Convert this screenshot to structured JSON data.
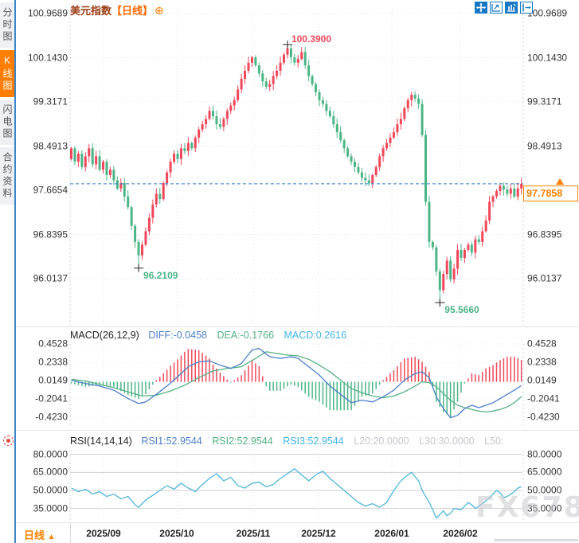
{
  "sidebar": {
    "tabs": [
      {
        "label": "分时图",
        "active": false
      },
      {
        "label": "K线图",
        "active": true
      },
      {
        "label": "闪电图",
        "active": false
      },
      {
        "label": "合约资料",
        "active": false
      }
    ]
  },
  "header": {
    "symbol": "美元指数",
    "interval_tag": "【日线】",
    "add_icon": "⊕"
  },
  "toolbar": {
    "icons": [
      "move-tool",
      "region-zoom-tool",
      "chart-style-tool",
      "exit-tool"
    ]
  },
  "price_box": {
    "value": "97.7858"
  },
  "bottom": {
    "interval_label": "日线",
    "arrow": "▲"
  },
  "watermark": "FX678",
  "indicators": {
    "macd": {
      "title": "MACD(26,12,9)",
      "diff_label": "DIFF:-0.0458",
      "dea_label": "DEA:-0.1766",
      "macd_label": "MACD:0.2616"
    },
    "rsi": {
      "title": "RSI(14,14,14)",
      "rsi1_label": "RSI1:52.9544",
      "rsi2_label": "RSI2:52.9544",
      "rsi3_label": "RSI3:52.9544",
      "l20_label": "L20:20.0000",
      "l30_label": "L30:30.0000",
      "l50_label": "L50:"
    }
  },
  "colors": {
    "up": "#f0475a",
    "down": "#4bb585",
    "diff_line": "#4a7fc9",
    "dea_line": "#55b183",
    "rsi_line": "#4fb6da",
    "accent_orange": "#ff7f00",
    "dashed_line_blue": "#2f7fd6"
  },
  "chart_data": {
    "type": "candlestick+macd+rsi",
    "x_labels": [
      "2025/09",
      "2025/10",
      "2025/11",
      "2025/12",
      "2026/01",
      "2026/02"
    ],
    "main": {
      "type": "candlestick",
      "title": "美元指数 日线",
      "y_ticks": [
        "100.9689",
        "100.1430",
        "99.3171",
        "98.4913",
        "97.6654",
        "96.8395",
        "96.0137"
      ],
      "last_price": 97.7858,
      "first_open": 98.25,
      "closes": [
        98.45,
        98.2,
        98.35,
        98.1,
        98.3,
        98.45,
        98.15,
        98.3,
        98.05,
        98.2,
        97.95,
        98.05,
        97.85,
        97.7,
        97.8,
        97.55,
        97.35,
        97.0,
        96.7,
        96.45,
        96.65,
        96.9,
        97.15,
        97.4,
        97.6,
        97.5,
        97.8,
        98.0,
        98.2,
        98.35,
        98.25,
        98.45,
        98.4,
        98.55,
        98.45,
        98.65,
        98.8,
        98.9,
        99.0,
        99.15,
        99.05,
        98.9,
        98.85,
        99.0,
        99.15,
        99.25,
        99.35,
        99.55,
        99.75,
        99.9,
        100.05,
        100.15,
        100.0,
        99.85,
        99.7,
        99.6,
        99.65,
        99.8,
        99.9,
        100.05,
        100.2,
        100.32,
        100.15,
        100.05,
        100.12,
        100.25,
        100.0,
        99.8,
        99.65,
        99.5,
        99.35,
        99.28,
        99.15,
        99.05,
        98.9,
        98.75,
        98.6,
        98.45,
        98.3,
        98.2,
        98.1,
        98.0,
        97.9,
        97.85,
        97.8,
        97.95,
        98.1,
        98.3,
        98.45,
        98.55,
        98.65,
        98.75,
        98.9,
        99.0,
        99.2,
        99.35,
        99.45,
        99.38,
        99.28,
        98.7,
        97.45,
        96.7,
        96.6,
        96.15,
        95.8,
        96.1,
        96.35,
        96.0,
        96.2,
        96.55,
        96.4,
        96.55,
        96.65,
        96.5,
        96.75,
        96.7,
        96.9,
        97.1,
        97.45,
        97.55,
        97.65,
        97.75,
        97.68,
        97.6,
        97.7,
        97.55,
        97.7,
        97.7858
      ],
      "extremes": {
        "19": {
          "low": 96.2109
        },
        "61": {
          "high": 100.39
        },
        "104": {
          "low": 95.566
        }
      },
      "annotations": [
        {
          "text": "100.3900",
          "price": 100.39,
          "index": 61,
          "kind": "high"
        },
        {
          "text": "96.2109",
          "price": 96.2109,
          "index": 19,
          "kind": "low"
        },
        {
          "text": "95.5660",
          "price": 95.566,
          "index": 104,
          "kind": "low"
        }
      ]
    },
    "macd": {
      "params": "26,12,9",
      "diff": -0.0458,
      "dea": -0.1766,
      "macd": 0.2616,
      "y_ticks": [
        "0.4528",
        "0.2338",
        "0.0149",
        "-0.2041",
        "-0.4230"
      ],
      "hist_rule": "2*(diff-dea)",
      "diff_anchors": [
        [
          0,
          0.02
        ],
        [
          4,
          -0.02
        ],
        [
          8,
          -0.05
        ],
        [
          12,
          -0.1
        ],
        [
          16,
          -0.2
        ],
        [
          19,
          -0.26
        ],
        [
          21,
          -0.24
        ],
        [
          24,
          -0.15
        ],
        [
          27,
          -0.05
        ],
        [
          30,
          0.06
        ],
        [
          33,
          0.18
        ],
        [
          36,
          0.24
        ],
        [
          39,
          0.25
        ],
        [
          42,
          0.2
        ],
        [
          45,
          0.16
        ],
        [
          48,
          0.22
        ],
        [
          51,
          0.38
        ],
        [
          53,
          0.4
        ],
        [
          56,
          0.3
        ],
        [
          59,
          0.28
        ],
        [
          62,
          0.3
        ],
        [
          64,
          0.28
        ],
        [
          67,
          0.18
        ],
        [
          70,
          0.08
        ],
        [
          73,
          -0.05
        ],
        [
          76,
          -0.15
        ],
        [
          79,
          -0.25
        ],
        [
          82,
          -0.22
        ],
        [
          85,
          -0.24
        ],
        [
          88,
          -0.18
        ],
        [
          91,
          -0.1
        ],
        [
          94,
          0.02
        ],
        [
          97,
          0.1
        ],
        [
          99,
          0.12
        ],
        [
          101,
          0.05
        ],
        [
          103,
          -0.18
        ],
        [
          105,
          -0.32
        ],
        [
          107,
          -0.43
        ],
        [
          109,
          -0.4
        ],
        [
          111,
          -0.32
        ],
        [
          113,
          -0.28
        ],
        [
          115,
          -0.31
        ],
        [
          117,
          -0.28
        ],
        [
          119,
          -0.25
        ],
        [
          121,
          -0.2
        ],
        [
          123,
          -0.15
        ],
        [
          125,
          -0.1
        ],
        [
          127,
          -0.0458
        ]
      ],
      "dea_anchors": [
        [
          0,
          0.03
        ],
        [
          4,
          0.01
        ],
        [
          8,
          -0.03
        ],
        [
          12,
          -0.07
        ],
        [
          16,
          -0.12
        ],
        [
          20,
          -0.17
        ],
        [
          24,
          -0.16
        ],
        [
          28,
          -0.11
        ],
        [
          32,
          -0.04
        ],
        [
          36,
          0.05
        ],
        [
          40,
          0.13
        ],
        [
          44,
          0.16
        ],
        [
          48,
          0.18
        ],
        [
          52,
          0.28
        ],
        [
          55,
          0.36
        ],
        [
          58,
          0.34
        ],
        [
          61,
          0.32
        ],
        [
          64,
          0.31
        ],
        [
          67,
          0.27
        ],
        [
          70,
          0.2
        ],
        [
          73,
          0.12
        ],
        [
          76,
          0.02
        ],
        [
          79,
          -0.08
        ],
        [
          82,
          -0.13
        ],
        [
          85,
          -0.17
        ],
        [
          88,
          -0.19
        ],
        [
          91,
          -0.17
        ],
        [
          94,
          -0.12
        ],
        [
          97,
          -0.05
        ],
        [
          99,
          0.0
        ],
        [
          101,
          -0.01
        ],
        [
          103,
          -0.06
        ],
        [
          105,
          -0.14
        ],
        [
          107,
          -0.22
        ],
        [
          109,
          -0.28
        ],
        [
          111,
          -0.31
        ],
        [
          113,
          -0.33
        ],
        [
          115,
          -0.35
        ],
        [
          117,
          -0.36
        ],
        [
          119,
          -0.35
        ],
        [
          121,
          -0.33
        ],
        [
          123,
          -0.3
        ],
        [
          125,
          -0.25
        ],
        [
          127,
          -0.1766
        ]
      ]
    },
    "rsi": {
      "params": "14,14,14",
      "rsi1": 52.9544,
      "rsi2": 52.9544,
      "rsi3": 52.9544,
      "y_ticks": [
        "80.0000",
        "65.0000",
        "50.0000",
        "35.0000"
      ],
      "grid_levels": [
        80,
        65,
        50,
        35
      ],
      "anchors": [
        [
          0,
          52
        ],
        [
          2,
          49
        ],
        [
          4,
          51
        ],
        [
          6,
          47
        ],
        [
          8,
          49
        ],
        [
          10,
          45
        ],
        [
          12,
          47
        ],
        [
          14,
          43
        ],
        [
          16,
          45
        ],
        [
          18,
          38
        ],
        [
          19,
          36
        ],
        [
          21,
          42
        ],
        [
          23,
          46
        ],
        [
          25,
          50
        ],
        [
          27,
          54
        ],
        [
          29,
          51
        ],
        [
          31,
          56
        ],
        [
          33,
          52
        ],
        [
          35,
          49
        ],
        [
          37,
          55
        ],
        [
          39,
          60
        ],
        [
          41,
          64
        ],
        [
          43,
          58
        ],
        [
          45,
          61
        ],
        [
          47,
          54
        ],
        [
          49,
          52
        ],
        [
          51,
          56
        ],
        [
          53,
          57
        ],
        [
          55,
          53
        ],
        [
          57,
          55
        ],
        [
          59,
          60
        ],
        [
          61,
          64
        ],
        [
          63,
          68
        ],
        [
          65,
          63
        ],
        [
          67,
          58
        ],
        [
          69,
          63
        ],
        [
          71,
          66
        ],
        [
          73,
          60
        ],
        [
          75,
          55
        ],
        [
          77,
          50
        ],
        [
          79,
          45
        ],
        [
          81,
          40
        ],
        [
          83,
          37
        ],
        [
          85,
          39
        ],
        [
          87,
          36
        ],
        [
          89,
          40
        ],
        [
          91,
          50
        ],
        [
          93,
          58
        ],
        [
          95,
          63
        ],
        [
          96,
          65
        ],
        [
          98,
          58
        ],
        [
          99,
          50
        ],
        [
          101,
          40
        ],
        [
          102,
          34
        ],
        [
          103,
          27
        ],
        [
          104,
          30
        ],
        [
          105,
          33
        ],
        [
          106,
          29
        ],
        [
          107,
          31
        ],
        [
          108,
          35
        ],
        [
          110,
          34
        ],
        [
          112,
          40
        ],
        [
          113,
          38
        ],
        [
          114,
          35
        ],
        [
          116,
          39
        ],
        [
          118,
          44
        ],
        [
          120,
          50
        ],
        [
          121,
          48
        ],
        [
          122,
          44
        ],
        [
          123,
          45
        ],
        [
          125,
          49
        ],
        [
          126,
          52
        ],
        [
          127,
          53
        ]
      ]
    }
  }
}
